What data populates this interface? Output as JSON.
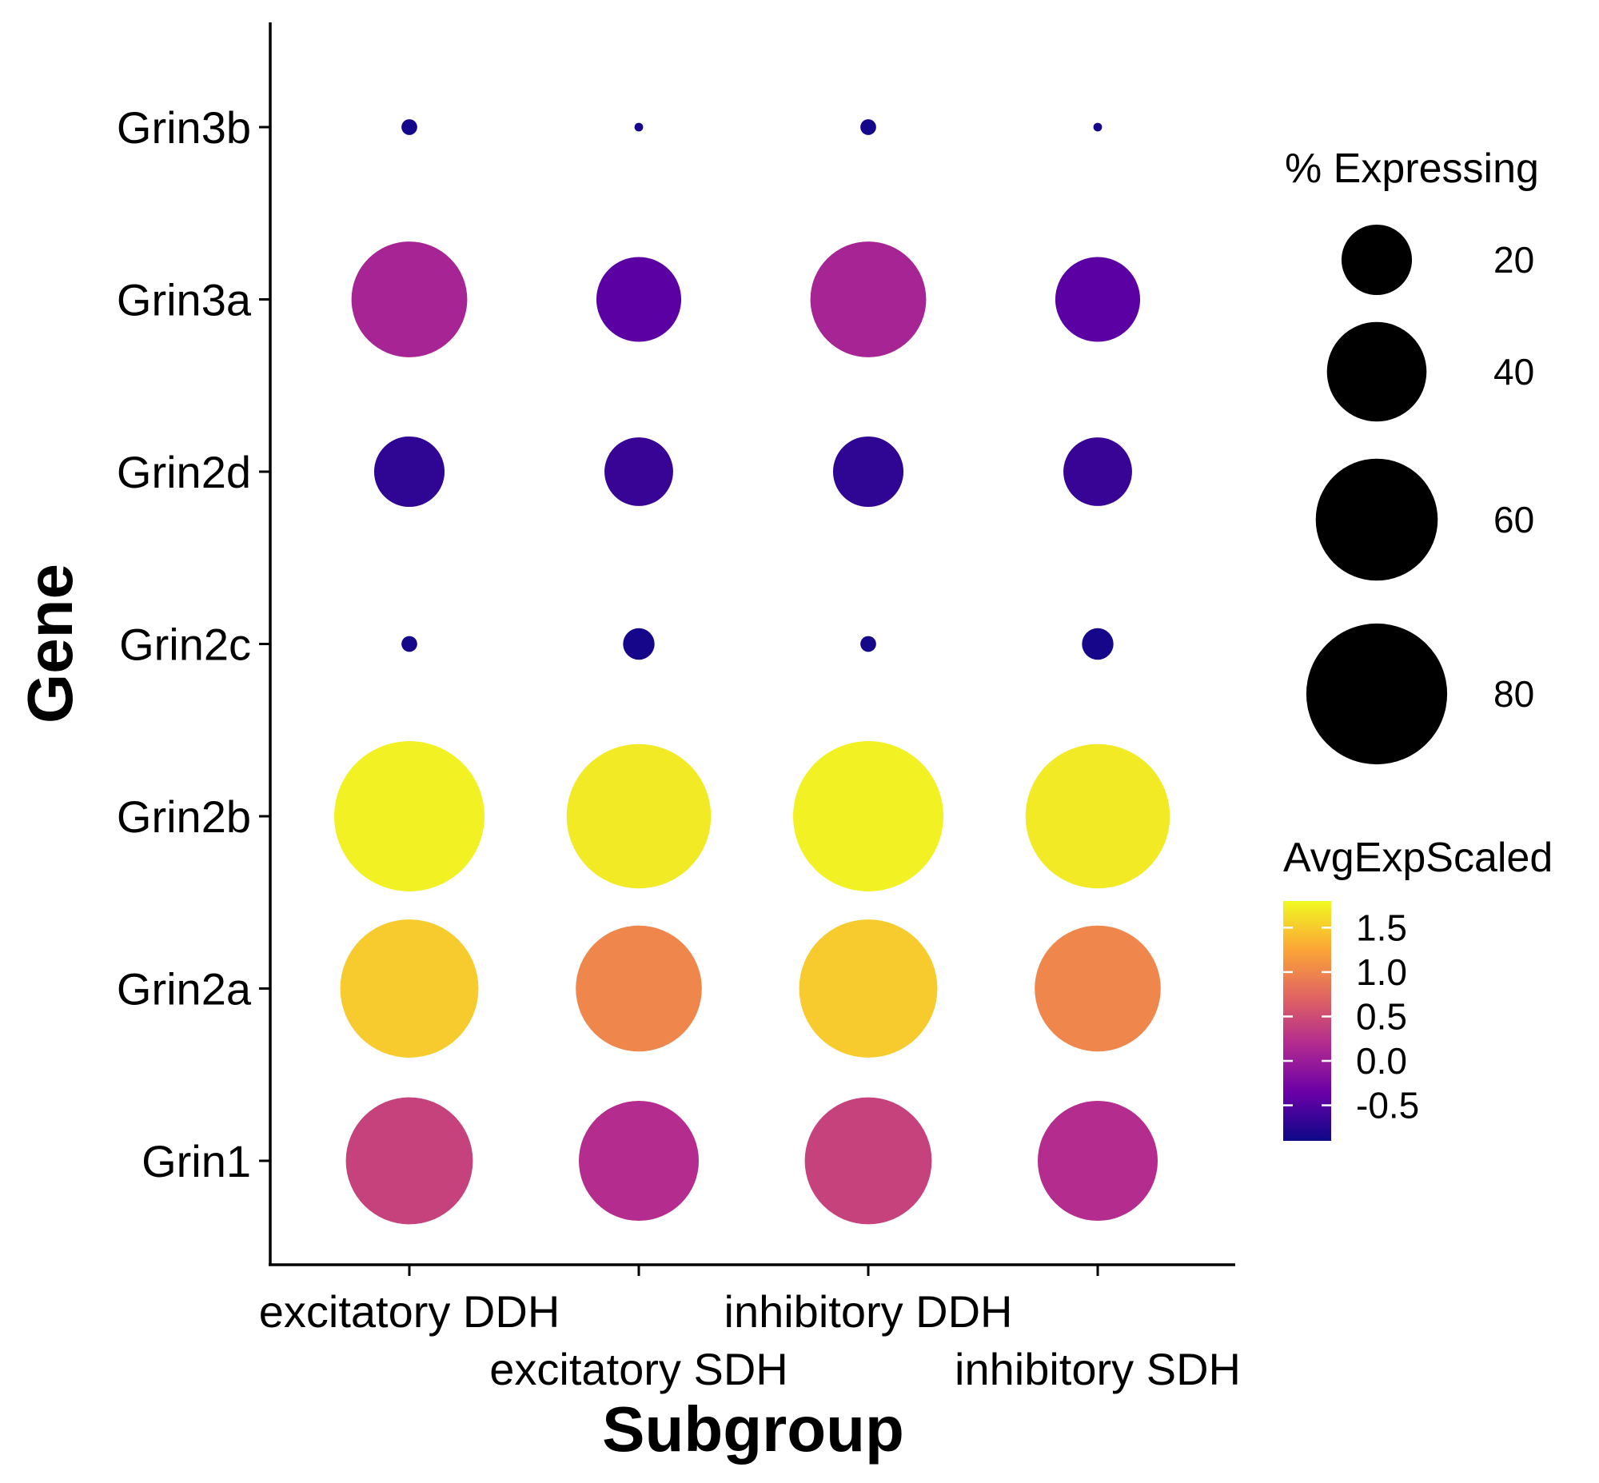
{
  "chart_data": {
    "type": "dot",
    "title": "",
    "xlabel": "Subgroup",
    "ylabel": "Gene",
    "categories": [
      "excitatory DDH",
      "excitatory SDH",
      "inhibitory DDH",
      "inhibitory SDH"
    ],
    "genes": [
      "Grin1",
      "Grin2a",
      "Grin2b",
      "Grin2c",
      "Grin2d",
      "Grin3a",
      "Grin3b"
    ],
    "series": [
      {
        "gene": "Grin1",
        "pct_expressing": [
          65,
          58,
          65,
          58
        ],
        "avg_exp_scaled": [
          0.4,
          0.2,
          0.4,
          0.2
        ]
      },
      {
        "gene": "Grin2a",
        "pct_expressing": [
          77,
          64,
          77,
          64
        ],
        "avg_exp_scaled": [
          1.5,
          1.0,
          1.5,
          1.0
        ]
      },
      {
        "gene": "Grin2b",
        "pct_expressing": [
          91,
          84,
          91,
          84
        ],
        "avg_exp_scaled": [
          1.75,
          1.7,
          1.75,
          1.7
        ]
      },
      {
        "gene": "Grin2c",
        "pct_expressing": [
          1,
          4,
          1,
          4
        ],
        "avg_exp_scaled": [
          -0.85,
          -0.85,
          -0.85,
          -0.85
        ]
      },
      {
        "gene": "Grin2d",
        "pct_expressing": [
          20,
          19,
          20,
          19
        ],
        "avg_exp_scaled": [
          -0.7,
          -0.65,
          -0.7,
          -0.65
        ]
      },
      {
        "gene": "Grin3a",
        "pct_expressing": [
          54,
          29,
          54,
          29
        ],
        "avg_exp_scaled": [
          0.1,
          -0.45,
          0.1,
          -0.45
        ]
      },
      {
        "gene": "Grin3b",
        "pct_expressing": [
          1,
          0.3,
          1,
          0.3
        ],
        "avg_exp_scaled": [
          -0.85,
          -0.85,
          -0.85,
          -0.85
        ]
      }
    ],
    "size_legend": {
      "title": "% Expressing",
      "breaks": [
        20,
        40,
        60,
        80
      ],
      "labels": [
        "20",
        "40",
        "60",
        "80"
      ]
    },
    "color_legend": {
      "title": "AvgExpScaled",
      "range": [
        -0.9,
        1.8
      ],
      "breaks": [
        1.5,
        1.0,
        0.5,
        0.0,
        -0.5
      ],
      "labels": [
        "1.5",
        "1.0",
        "0.5",
        "0.0",
        "-0.5"
      ],
      "palette": [
        "#0d0887",
        "#6a00a8",
        "#b12a90",
        "#e16462",
        "#fca636",
        "#f0f921"
      ]
    },
    "grid": false,
    "legend_position": "right"
  }
}
